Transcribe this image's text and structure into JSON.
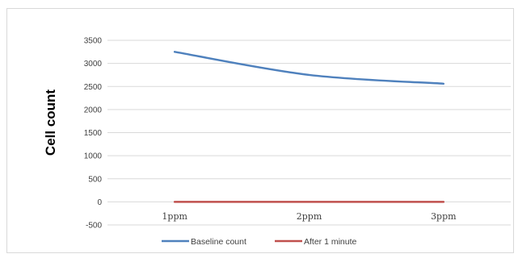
{
  "chart_data": {
    "type": "line",
    "title": "",
    "xlabel": "",
    "ylabel": "Cell count",
    "categories": [
      "1ppm",
      "2ppm",
      "3ppm"
    ],
    "ylim": [
      -500,
      3500
    ],
    "yticks": [
      3500,
      3000,
      2500,
      2000,
      1500,
      1000,
      500,
      0,
      -500
    ],
    "grid": true,
    "legend_position": "bottom",
    "series": [
      {
        "name": "Baseline count",
        "values": [
          3250,
          2750,
          2560
        ],
        "color": "#4f81bd",
        "smooth": true
      },
      {
        "name": "After 1 minute",
        "values": [
          0,
          0,
          0
        ],
        "color": "#c0504d",
        "smooth": false
      }
    ]
  }
}
